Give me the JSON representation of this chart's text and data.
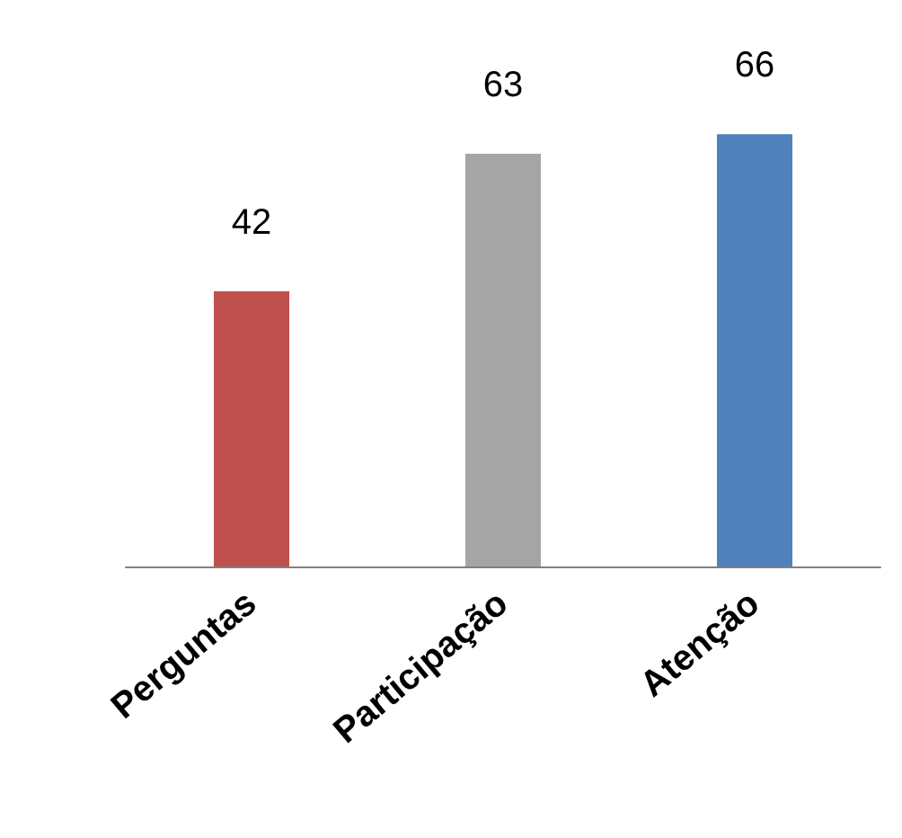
{
  "chart_data": {
    "type": "bar",
    "categories": [
      "Perguntas",
      "Participação",
      "Atenção"
    ],
    "values": [
      42,
      63,
      66
    ],
    "colors": [
      "#c0504d",
      "#a5a5a5",
      "#4f81bd"
    ],
    "data_labels": true
  }
}
